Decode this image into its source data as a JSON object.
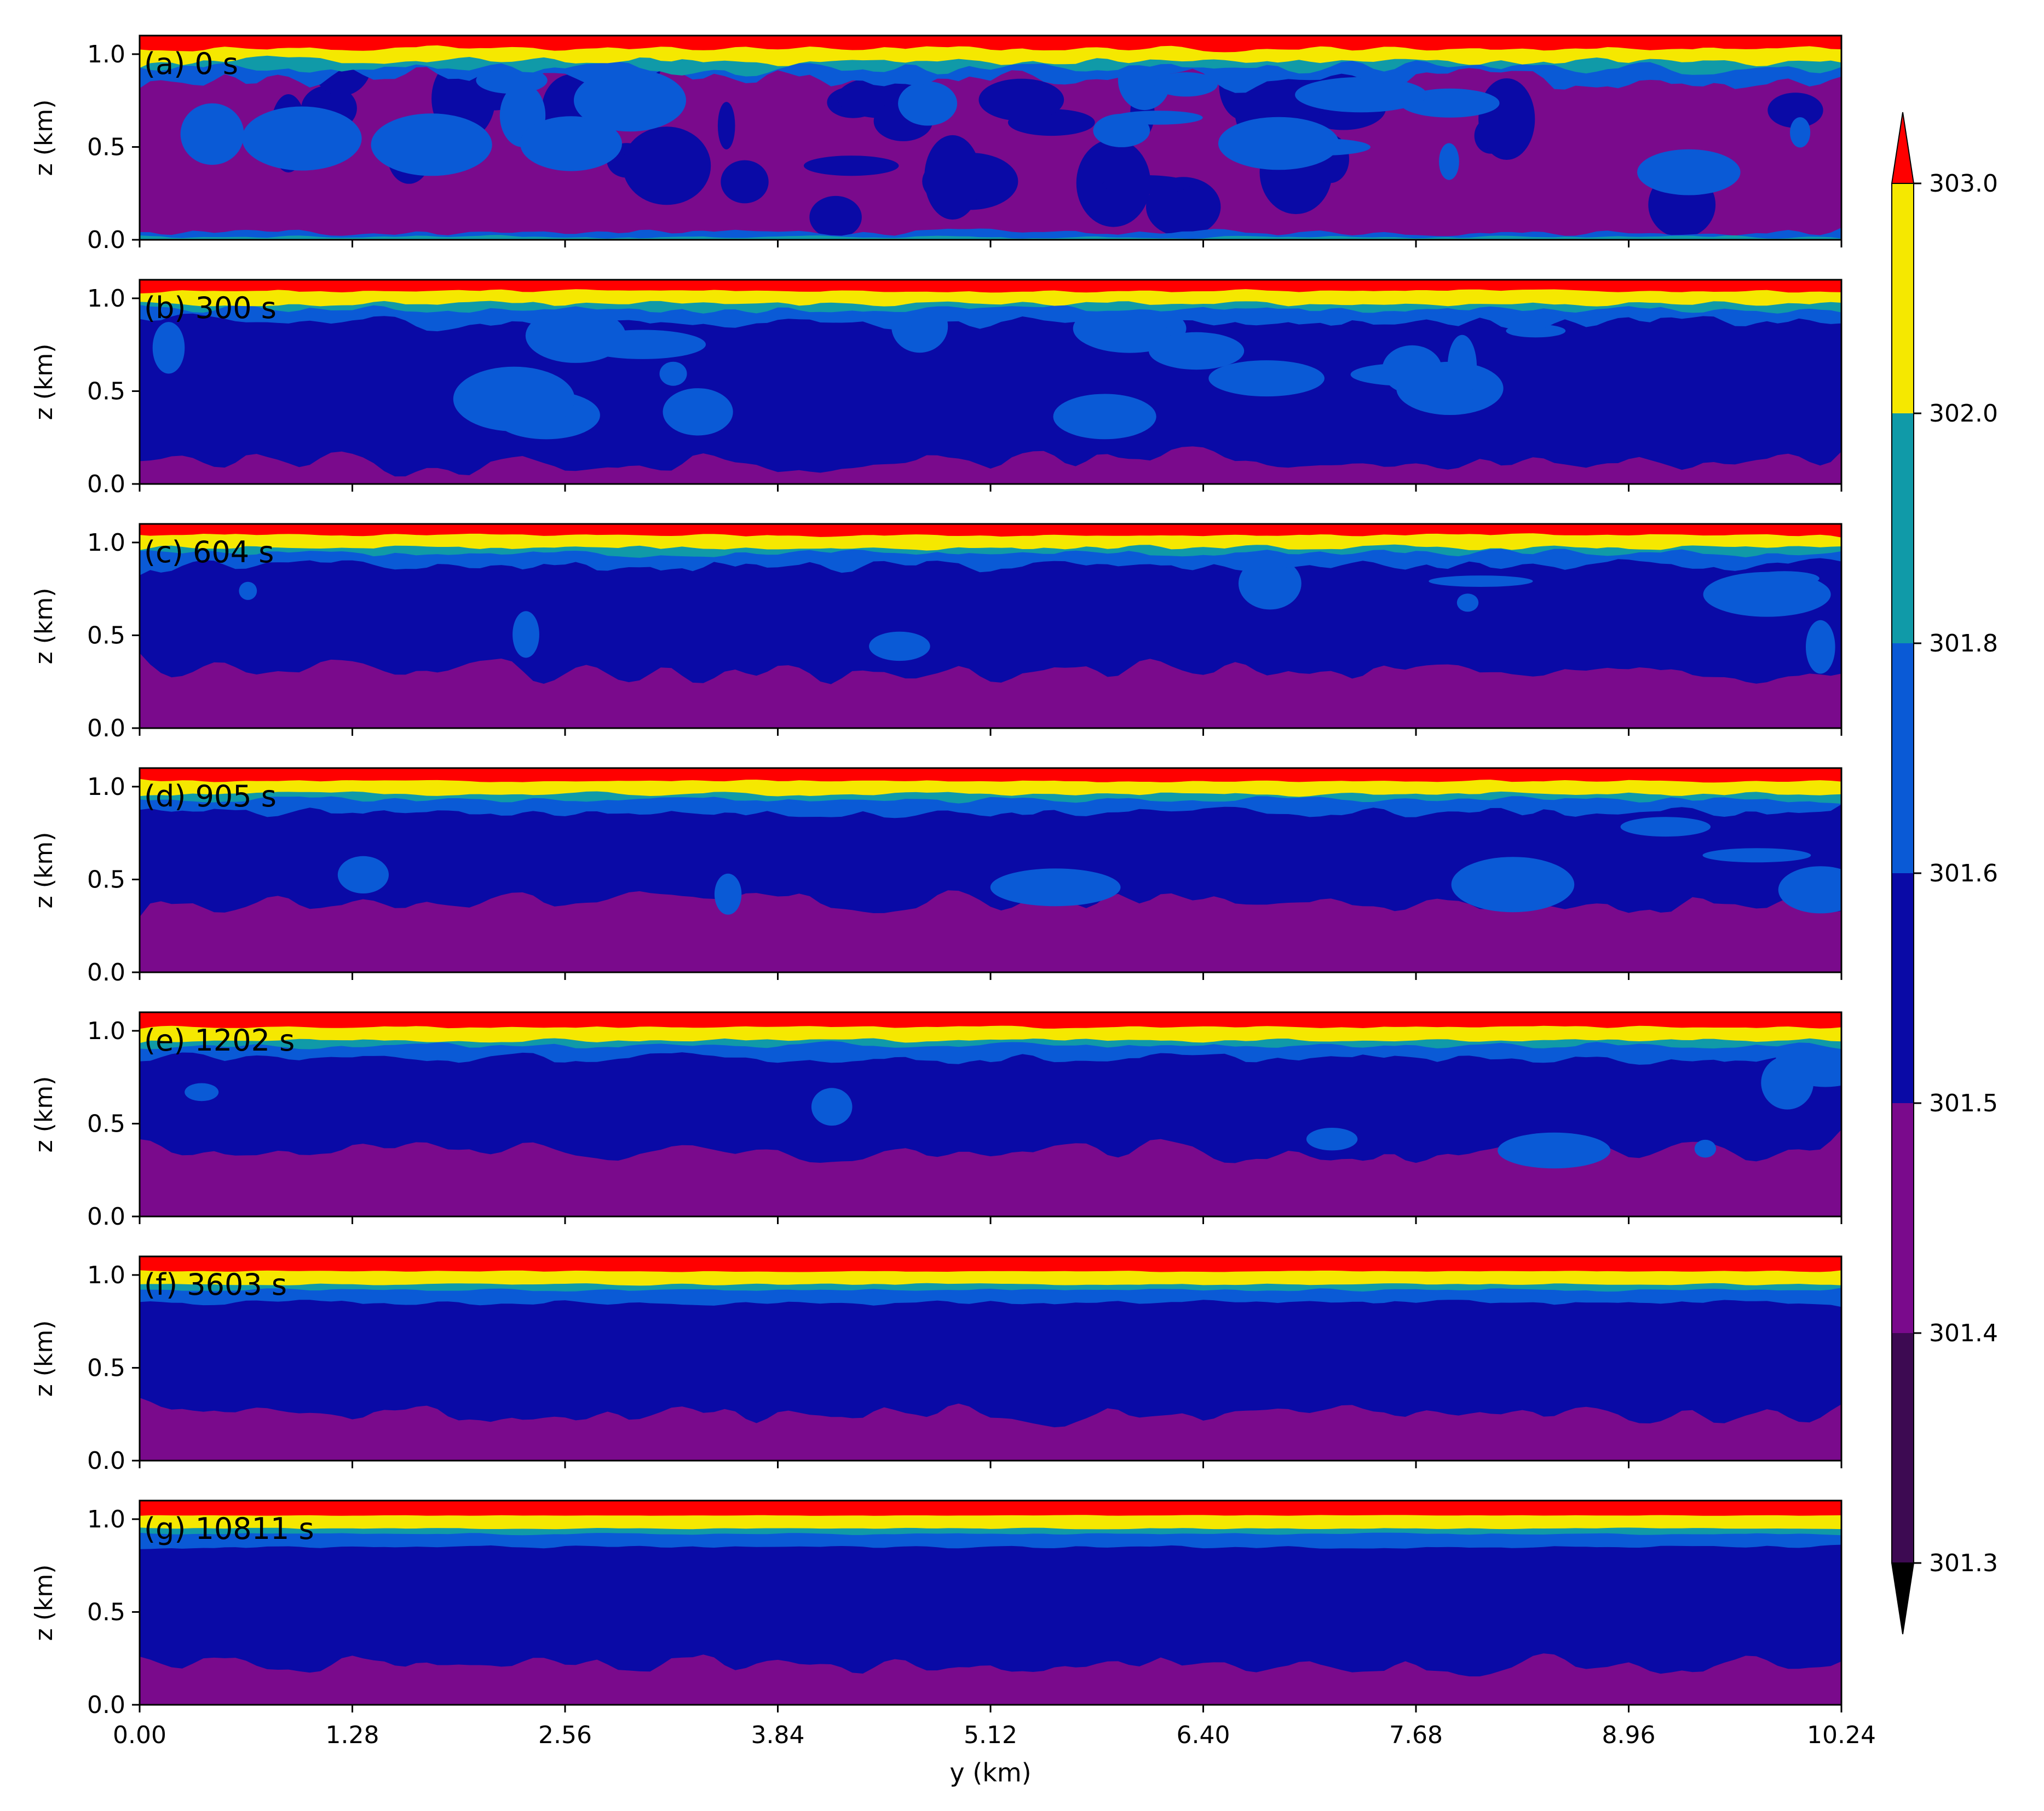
{
  "chart_data": {
    "type": "heatmap",
    "description_free": true,
    "xlabel": "y (km)",
    "ylabel": "z (km)",
    "xlim": [
      0.0,
      10.24
    ],
    "ylim": [
      0.0,
      1.1
    ],
    "xticks": [
      0.0,
      1.28,
      2.56,
      3.84,
      5.12,
      6.4,
      7.68,
      8.96,
      10.24
    ],
    "xtick_labels": [
      "0.00",
      "1.28",
      "2.56",
      "3.84",
      "5.12",
      "6.40",
      "7.68",
      "8.96",
      "10.24"
    ],
    "yticks": [
      0.0,
      0.5,
      1.0
    ],
    "ytick_labels": [
      "0.0",
      "0.5",
      "1.0"
    ],
    "colorbar": {
      "levels": [
        301.3,
        301.4,
        301.5,
        301.6,
        301.8,
        302.0,
        303.0
      ],
      "tick_labels": [
        "301.3",
        "301.4",
        "301.5",
        "301.6",
        "301.8",
        "302.0",
        "303.0"
      ],
      "band_colors": [
        "#3d0a52",
        "#7a0a8c",
        "#0a0aa6",
        "#0a5ad6",
        "#109aa8",
        "#f5e800"
      ],
      "under_color": "#000000",
      "over_color": "#ff0000",
      "extend": "both"
    },
    "panels": [
      {
        "label": "(a) 0 s",
        "time_s": 0,
        "inversion_z": 0.98,
        "jitter": 0.04,
        "mix_top": 0.0,
        "light_frac": 0.35,
        "base_light": true
      },
      {
        "label": "(b) 300 s",
        "time_s": 300,
        "inversion_z": 0.99,
        "jitter": 0.025,
        "mix_top": 0.12,
        "light_frac": 0.3,
        "base_light": false
      },
      {
        "label": "(c) 604 s",
        "time_s": 604,
        "inversion_z": 0.99,
        "jitter": 0.025,
        "mix_top": 0.3,
        "light_frac": 0.15,
        "base_light": false
      },
      {
        "label": "(d) 905 s",
        "time_s": 905,
        "inversion_z": 0.98,
        "jitter": 0.02,
        "mix_top": 0.38,
        "light_frac": 0.12,
        "base_light": false
      },
      {
        "label": "(e) 1202 s",
        "time_s": 1202,
        "inversion_z": 0.97,
        "jitter": 0.02,
        "mix_top": 0.36,
        "light_frac": 0.12,
        "base_light": false
      },
      {
        "label": "(f) 3603 s",
        "time_s": 3603,
        "inversion_z": 0.97,
        "jitter": 0.01,
        "mix_top": 0.25,
        "light_frac": 0.0,
        "base_light": false
      },
      {
        "label": "(g) 10811 s",
        "time_s": 10811,
        "inversion_z": 0.97,
        "jitter": 0.006,
        "mix_top": 0.22,
        "light_frac": 0.0,
        "base_light": false
      }
    ]
  }
}
